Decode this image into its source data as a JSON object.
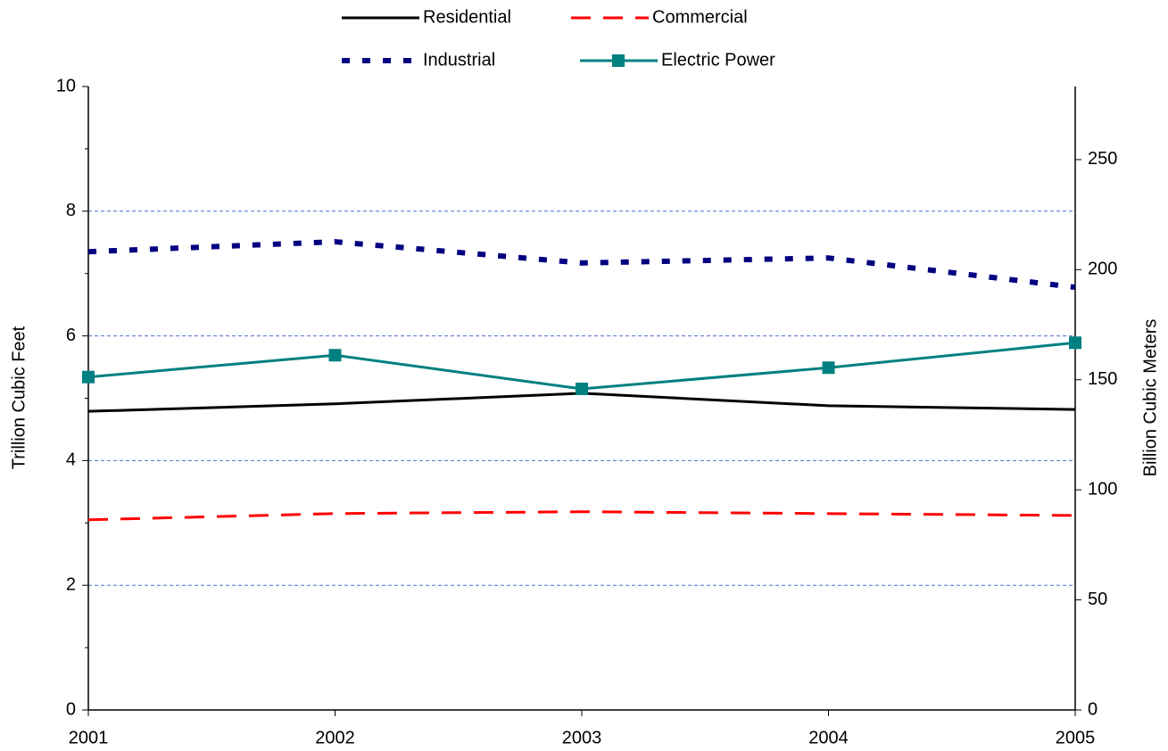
{
  "chart_data": {
    "type": "line",
    "x": [
      2001,
      2002,
      2003,
      2004,
      2005
    ],
    "xlim": [
      2001,
      2005
    ],
    "xticks": [
      2001,
      2002,
      2003,
      2004,
      2005
    ],
    "ylabel": "Trillion Cubic Feet",
    "y2label": "Billion Cubic Meters",
    "ylim": [
      0,
      10
    ],
    "yticks": [
      0,
      2,
      4,
      6,
      8,
      10
    ],
    "yminor_ticks": [
      1,
      3,
      5,
      7,
      9
    ],
    "y2lim": [
      0,
      283.2
    ],
    "y2ticks": [
      0,
      50,
      100,
      150,
      200,
      250
    ],
    "grid": true,
    "legend": "top",
    "series": [
      {
        "name": "Residential",
        "color": "#000000",
        "style": "solid",
        "values": [
          4.79,
          4.91,
          5.08,
          4.88,
          4.82
        ]
      },
      {
        "name": "Commercial",
        "color": "#ff0000",
        "style": "dashed",
        "values": [
          3.05,
          3.15,
          3.18,
          3.15,
          3.12
        ]
      },
      {
        "name": "Industrial",
        "color": "#000080",
        "style": "dotted",
        "values": [
          7.35,
          7.51,
          7.17,
          7.25,
          6.78
        ]
      },
      {
        "name": "Electric Power",
        "color": "#008080",
        "style": "solid",
        "marker": "square",
        "values": [
          5.34,
          5.69,
          5.15,
          5.49,
          5.89
        ]
      }
    ]
  }
}
